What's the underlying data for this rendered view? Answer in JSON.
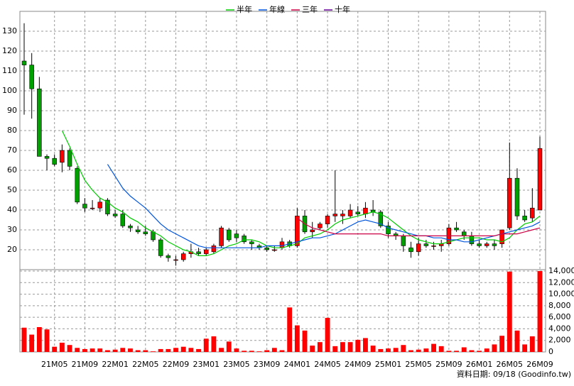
{
  "chart_data": {
    "type": "candlestick",
    "categories": [
      null,
      null,
      null,
      null,
      "21M05",
      null,
      null,
      null,
      "21M09",
      null,
      null,
      null,
      "22M01",
      null,
      null,
      null,
      "22M05",
      null,
      null,
      null,
      "22M09",
      null,
      null,
      null,
      "23M01",
      null,
      null,
      null,
      "23M05",
      null,
      null,
      null,
      "23M09",
      null,
      null,
      null,
      "24M01",
      null,
      null,
      null,
      "24M05",
      null,
      null,
      null,
      "24M09",
      null,
      null,
      null,
      "25M01",
      null,
      null,
      null,
      "25M05",
      null,
      null,
      null,
      "25M09",
      null,
      null,
      null,
      "26M01",
      null,
      null,
      null,
      "26M05",
      null,
      null,
      null,
      "26M09"
    ],
    "open": [
      115,
      113,
      101,
      67,
      66,
      64,
      70,
      61,
      43,
      41,
      41,
      45,
      38,
      38,
      32,
      30,
      29,
      29,
      25,
      17,
      15,
      15,
      18,
      19,
      18,
      19,
      22,
      30,
      28,
      27,
      24,
      22,
      21,
      20,
      21,
      24,
      22,
      37,
      29,
      31,
      33,
      37,
      37,
      37,
      39,
      38,
      40,
      39,
      32,
      28,
      27,
      21,
      19,
      23,
      22,
      22,
      23,
      31,
      29,
      27,
      23,
      22,
      23,
      23,
      31,
      56,
      37,
      36,
      40
    ],
    "high": [
      134,
      119,
      107,
      68,
      68,
      73,
      71,
      62,
      46,
      45,
      46,
      46,
      40,
      40,
      33,
      32,
      32,
      30,
      26,
      18,
      17,
      19,
      23,
      21,
      21,
      23,
      32,
      31,
      30,
      28,
      25,
      23,
      22,
      22,
      26,
      25,
      41,
      40,
      34,
      34,
      38,
      60,
      40,
      43,
      42,
      44,
      45,
      40,
      34,
      29,
      28,
      24,
      26,
      25,
      24,
      25,
      33,
      34,
      30,
      29,
      25,
      24,
      25,
      29,
      74,
      61,
      40,
      51,
      77
    ],
    "low": [
      88,
      86,
      67,
      60,
      62,
      59,
      60,
      43,
      39,
      40,
      39,
      37,
      36,
      31,
      29,
      28,
      27,
      24,
      16,
      14,
      12,
      14,
      16,
      17,
      17,
      18,
      21,
      24,
      24,
      23,
      20,
      20,
      19,
      19,
      20,
      21,
      21,
      28,
      26,
      30,
      31,
      34,
      33,
      36,
      37,
      36,
      37,
      31,
      26,
      25,
      19,
      16,
      17,
      21,
      20,
      19,
      22,
      29,
      25,
      22,
      21,
      21,
      20,
      21,
      30,
      35,
      34,
      34,
      40
    ],
    "close": [
      113,
      101,
      67,
      66,
      63,
      70,
      62,
      44,
      41,
      41,
      44,
      38,
      37,
      32,
      31,
      29,
      28,
      25,
      17,
      16,
      15,
      18,
      19,
      18,
      20,
      22,
      31,
      25,
      26,
      24,
      23,
      21,
      20,
      20,
      24,
      22,
      37,
      29,
      30,
      33,
      37,
      38,
      38,
      40,
      38,
      41,
      39,
      32,
      28,
      27,
      22,
      19,
      23,
      22,
      22,
      23,
      31,
      30,
      27,
      23,
      22,
      23,
      22,
      30,
      56,
      37,
      35,
      41,
      71
    ],
    "volume": [
      4200,
      3000,
      4300,
      3900,
      900,
      1600,
      1200,
      700,
      500,
      600,
      600,
      300,
      400,
      700,
      600,
      300,
      300,
      100,
      500,
      500,
      700,
      900,
      700,
      500,
      2300,
      2700,
      700,
      1800,
      600,
      200,
      200,
      100,
      300,
      700,
      300,
      7700,
      4600,
      3700,
      1100,
      1700,
      5900,
      1000,
      1700,
      1700,
      2100,
      2400,
      1100,
      500,
      600,
      700,
      1200,
      300,
      400,
      600,
      1400,
      1000,
      200,
      200,
      800,
      300,
      200,
      600,
      1300,
      2800,
      13900,
      3700,
      1300,
      2700,
      14000
    ],
    "up_color": "#ff0000",
    "down_color": "#00a000",
    "volume_color": "#ff0000",
    "series": [
      {
        "name": "半年",
        "color": "#00cc00",
        "values": [
          null,
          null,
          null,
          null,
          null,
          80,
          72,
          63,
          55,
          50,
          46,
          44,
          41,
          39,
          36,
          34,
          31,
          29,
          27,
          24,
          22,
          20,
          19,
          17,
          17,
          18,
          20,
          22,
          23,
          25,
          25,
          24,
          22,
          21,
          21,
          22,
          23,
          26,
          27,
          28,
          30,
          33,
          35,
          36,
          37,
          38,
          39,
          38,
          36,
          33,
          30,
          27,
          25,
          24,
          23,
          23,
          24,
          25,
          26,
          26,
          26,
          25,
          25,
          24,
          26,
          30,
          33,
          34,
          37
        ]
      },
      {
        "name": "年線",
        "color": "#0055dd",
        "values": [
          null,
          null,
          null,
          null,
          null,
          null,
          null,
          null,
          null,
          null,
          null,
          63,
          57,
          51,
          47,
          44,
          41,
          37,
          33,
          30,
          28,
          26,
          24,
          22,
          21,
          21,
          21,
          21,
          21,
          21,
          21,
          21,
          22,
          22,
          22,
          23,
          24,
          25,
          26,
          26,
          27,
          28,
          30,
          32,
          34,
          35,
          34,
          33,
          31,
          30,
          29,
          28,
          27,
          27,
          26,
          26,
          25,
          25,
          24,
          24,
          25,
          26,
          27,
          28,
          29,
          30,
          31,
          32,
          34
        ]
      },
      {
        "name": "三年",
        "color": "#cc0044",
        "values": [
          null,
          null,
          null,
          null,
          null,
          null,
          null,
          null,
          null,
          null,
          null,
          null,
          null,
          null,
          null,
          null,
          null,
          null,
          null,
          null,
          null,
          null,
          null,
          null,
          null,
          null,
          null,
          null,
          null,
          null,
          null,
          null,
          null,
          null,
          null,
          null,
          36,
          33,
          31,
          30,
          29,
          28,
          28,
          28,
          28,
          28,
          28,
          28,
          27,
          27,
          27,
          27,
          27,
          27,
          27,
          27,
          27,
          27,
          27,
          27,
          27,
          27,
          27,
          28,
          28,
          28,
          29,
          30,
          31
        ]
      },
      {
        "name": "十年",
        "color": "#660099",
        "values": [
          null,
          null,
          null,
          null,
          null,
          null,
          null,
          null,
          null,
          null,
          null,
          null,
          null,
          null,
          null,
          null,
          null,
          null,
          null,
          null,
          null,
          null,
          null,
          null,
          null,
          null,
          null,
          null,
          null,
          null,
          null,
          null,
          null,
          null,
          null,
          null,
          null,
          null,
          null,
          null,
          null,
          null,
          null,
          null,
          null,
          null,
          null,
          null,
          null,
          null,
          null,
          null,
          null,
          null,
          null,
          null,
          null,
          null,
          null,
          null,
          null,
          null,
          null,
          null,
          null,
          null,
          null,
          null,
          null
        ]
      }
    ],
    "ylim": [
      10,
      140
    ],
    "yticks": [
      20,
      30,
      40,
      50,
      60,
      70,
      80,
      90,
      100,
      110,
      120,
      130
    ],
    "y2lim": [
      0,
      14000
    ],
    "y2ticks": [
      {
        "value": 0,
        "label": "0"
      },
      {
        "value": 2000,
        "label": "2,000"
      },
      {
        "value": 4000,
        "label": "4,000"
      },
      {
        "value": 6000,
        "label": "6,000"
      },
      {
        "value": 8000,
        "label": "8,000"
      },
      {
        "value": 10000,
        "label": "10,000"
      },
      {
        "value": 12000,
        "label": "12,000"
      },
      {
        "value": 14000,
        "label": "14,000"
      }
    ],
    "grid": true,
    "source": "資料日期: 09/18  (Goodinfo.tw)"
  }
}
